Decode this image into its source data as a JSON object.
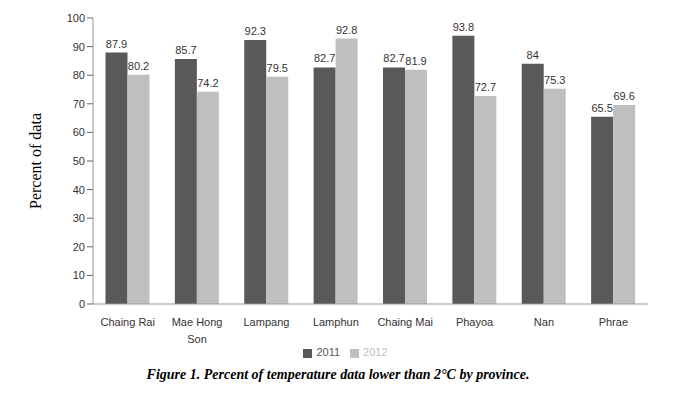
{
  "chart_data": {
    "type": "bar",
    "title": "Figure 1. Percent of temperature data lower than 2°C by province.",
    "y_label": "Percent of data",
    "categories": [
      "Chaing Rai",
      "Mae Hong Son",
      "Lampang",
      "Lamphun",
      "Chaing Mai",
      "Phayoa",
      "Nan",
      "Phrae"
    ],
    "series": [
      {
        "name": "2011",
        "color": "#595959",
        "values": [
          87.9,
          85.7,
          92.3,
          82.7,
          82.7,
          93.8,
          84,
          65.5
        ]
      },
      {
        "name": "2012",
        "color": "#bfbfbf",
        "values": [
          80.2,
          74.2,
          79.5,
          92.8,
          81.9,
          72.7,
          75.3,
          69.6
        ]
      }
    ],
    "ylim": [
      0,
      100
    ],
    "yticks": [
      0,
      10,
      20,
      30,
      40,
      50,
      60,
      70,
      80,
      90,
      100
    ],
    "grid": false,
    "legend": "bottom",
    "data_labels": true
  }
}
